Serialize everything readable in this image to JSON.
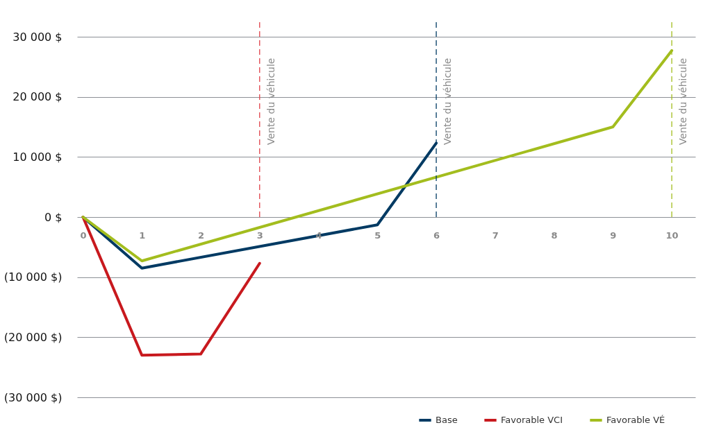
{
  "chart_data": {
    "type": "line",
    "series": [
      {
        "name": "Base",
        "color": "#003a63",
        "x": [
          0,
          1,
          5,
          6
        ],
        "values": [
          0,
          -8500,
          -1300,
          12300
        ]
      },
      {
        "name": "Favorable VCI",
        "color": "#c8191e",
        "x": [
          0,
          1,
          2,
          3
        ],
        "values": [
          0,
          -23000,
          -22800,
          -7700
        ]
      },
      {
        "name": "Favorable VÉ",
        "color": "#a3bd1e",
        "x": [
          0,
          1,
          9,
          10
        ],
        "values": [
          0,
          -7300,
          15000,
          27700
        ]
      }
    ],
    "xlim": [
      -0.1,
      10.4
    ],
    "xticks": [
      0,
      1,
      2,
      3,
      4,
      5,
      6,
      7,
      8,
      9,
      10
    ],
    "ylim": [
      -30000,
      30000
    ],
    "yticks": [
      {
        "value": -30000,
        "label": "(30 000 $)"
      },
      {
        "value": -20000,
        "label": "(20 000 $)"
      },
      {
        "value": -10000,
        "label": "(10 000 $)"
      },
      {
        "value": 0,
        "label": "0 $"
      },
      {
        "value": 10000,
        "label": "10 000 $"
      },
      {
        "value": 20000,
        "label": "20 000 $"
      },
      {
        "value": 30000,
        "label": "30 000 $"
      }
    ],
    "ref_lines": [
      {
        "axis": "x",
        "value": 3,
        "label": "Vente du véhicule",
        "color": "#e0434a",
        "line_style": "dashed"
      },
      {
        "axis": "x",
        "value": 6,
        "label": "Vente du véhicule",
        "color": "#003a63",
        "line_style": "dashed"
      },
      {
        "axis": "x",
        "value": 10,
        "label": "Vente du véhicule",
        "color": "#a3bd1e",
        "line_style": "dashed"
      }
    ],
    "grid": "y",
    "legend": "bottom right",
    "line_style": "solid",
    "marker": "none"
  }
}
